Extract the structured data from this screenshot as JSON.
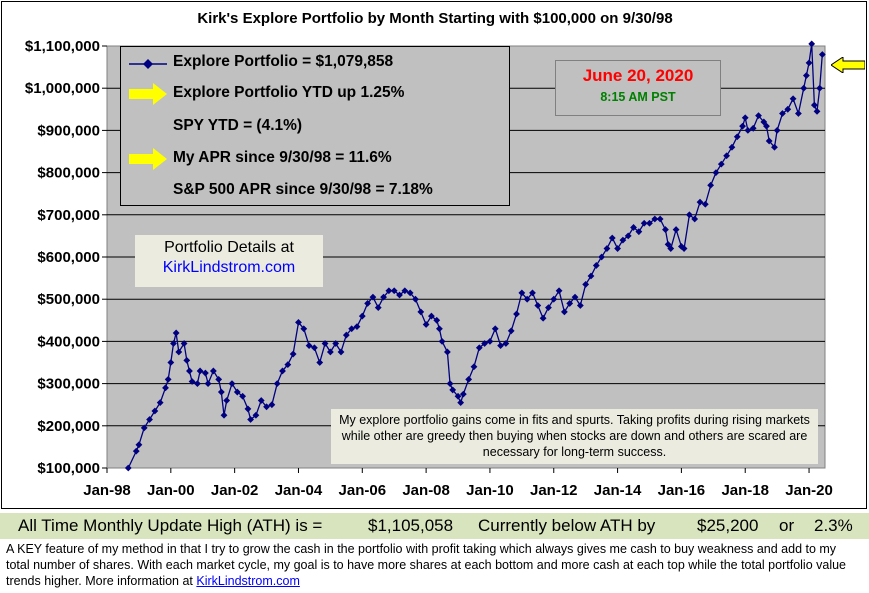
{
  "chart_data": {
    "type": "line",
    "title": "Kirk's Explore Portfolio by Month Starting with $100,000 on 9/30/98",
    "xlabel": "",
    "ylabel": "",
    "x_tick_labels": [
      "Jan-98",
      "Jan-00",
      "Jan-02",
      "Jan-04",
      "Jan-06",
      "Jan-08",
      "Jan-10",
      "Jan-12",
      "Jan-14",
      "Jan-16",
      "Jan-18",
      "Jan-20"
    ],
    "y_tick_labels": [
      "$100,000",
      "$200,000",
      "$300,000",
      "$400,000",
      "$500,000",
      "$600,000",
      "$700,000",
      "$800,000",
      "$900,000",
      "$1,000,000",
      "$1,100,000"
    ],
    "ylim": [
      100000,
      1100000
    ],
    "xlim": [
      "1998-01",
      "2020-07"
    ],
    "grid": "horizontal",
    "series": [
      {
        "name": "Explore Portfolio",
        "color": "#000080",
        "marker": "diamond",
        "points": [
          [
            "1998-09",
            100000
          ],
          [
            "1998-12",
            140000
          ],
          [
            "1999-01",
            155000
          ],
          [
            "1999-03",
            195000
          ],
          [
            "1999-05",
            215000
          ],
          [
            "1999-07",
            235000
          ],
          [
            "1999-09",
            255000
          ],
          [
            "1999-11",
            290000
          ],
          [
            "1999-12",
            310000
          ],
          [
            "2000-01",
            350000
          ],
          [
            "2000-02",
            395000
          ],
          [
            "2000-03",
            420000
          ],
          [
            "2000-04",
            375000
          ],
          [
            "2000-06",
            395000
          ],
          [
            "2000-07",
            355000
          ],
          [
            "2000-08",
            330000
          ],
          [
            "2000-09",
            305000
          ],
          [
            "2000-11",
            300000
          ],
          [
            "2000-12",
            330000
          ],
          [
            "2001-02",
            325000
          ],
          [
            "2001-03",
            300000
          ],
          [
            "2001-05",
            330000
          ],
          [
            "2001-07",
            310000
          ],
          [
            "2001-08",
            280000
          ],
          [
            "2001-09",
            225000
          ],
          [
            "2001-10",
            260000
          ],
          [
            "2001-12",
            300000
          ],
          [
            "2002-02",
            280000
          ],
          [
            "2002-04",
            270000
          ],
          [
            "2002-06",
            240000
          ],
          [
            "2002-07",
            215000
          ],
          [
            "2002-09",
            225000
          ],
          [
            "2002-11",
            260000
          ],
          [
            "2003-01",
            245000
          ],
          [
            "2003-03",
            250000
          ],
          [
            "2003-05",
            300000
          ],
          [
            "2003-07",
            330000
          ],
          [
            "2003-09",
            345000
          ],
          [
            "2003-11",
            370000
          ],
          [
            "2004-01",
            445000
          ],
          [
            "2004-03",
            430000
          ],
          [
            "2004-05",
            390000
          ],
          [
            "2004-07",
            385000
          ],
          [
            "2004-09",
            350000
          ],
          [
            "2004-11",
            395000
          ],
          [
            "2005-01",
            375000
          ],
          [
            "2005-03",
            395000
          ],
          [
            "2005-05",
            375000
          ],
          [
            "2005-07",
            415000
          ],
          [
            "2005-09",
            430000
          ],
          [
            "2005-11",
            435000
          ],
          [
            "2006-01",
            460000
          ],
          [
            "2006-03",
            490000
          ],
          [
            "2006-05",
            505000
          ],
          [
            "2006-07",
            480000
          ],
          [
            "2006-09",
            505000
          ],
          [
            "2006-11",
            520000
          ],
          [
            "2007-01",
            520000
          ],
          [
            "2007-03",
            510000
          ],
          [
            "2007-05",
            520000
          ],
          [
            "2007-07",
            515000
          ],
          [
            "2007-09",
            500000
          ],
          [
            "2007-11",
            470000
          ],
          [
            "2008-01",
            440000
          ],
          [
            "2008-03",
            460000
          ],
          [
            "2008-05",
            450000
          ],
          [
            "2008-06",
            430000
          ],
          [
            "2008-07",
            400000
          ],
          [
            "2008-09",
            375000
          ],
          [
            "2008-10",
            300000
          ],
          [
            "2008-11",
            285000
          ],
          [
            "2009-01",
            270000
          ],
          [
            "2009-02",
            255000
          ],
          [
            "2009-03",
            275000
          ],
          [
            "2009-05",
            310000
          ],
          [
            "2009-07",
            340000
          ],
          [
            "2009-09",
            385000
          ],
          [
            "2009-11",
            395000
          ],
          [
            "2010-01",
            400000
          ],
          [
            "2010-03",
            430000
          ],
          [
            "2010-05",
            390000
          ],
          [
            "2010-07",
            395000
          ],
          [
            "2010-09",
            425000
          ],
          [
            "2010-11",
            465000
          ],
          [
            "2011-01",
            515000
          ],
          [
            "2011-03",
            500000
          ],
          [
            "2011-05",
            515000
          ],
          [
            "2011-07",
            485000
          ],
          [
            "2011-09",
            455000
          ],
          [
            "2011-11",
            480000
          ],
          [
            "2012-01",
            500000
          ],
          [
            "2012-03",
            520000
          ],
          [
            "2012-05",
            470000
          ],
          [
            "2012-07",
            490000
          ],
          [
            "2012-09",
            505000
          ],
          [
            "2012-11",
            485000
          ],
          [
            "2013-01",
            535000
          ],
          [
            "2013-03",
            555000
          ],
          [
            "2013-05",
            580000
          ],
          [
            "2013-07",
            600000
          ],
          [
            "2013-09",
            620000
          ],
          [
            "2013-11",
            645000
          ],
          [
            "2014-01",
            620000
          ],
          [
            "2014-03",
            640000
          ],
          [
            "2014-05",
            650000
          ],
          [
            "2014-07",
            670000
          ],
          [
            "2014-09",
            660000
          ],
          [
            "2014-11",
            680000
          ],
          [
            "2015-01",
            680000
          ],
          [
            "2015-03",
            690000
          ],
          [
            "2015-05",
            690000
          ],
          [
            "2015-07",
            665000
          ],
          [
            "2015-08",
            630000
          ],
          [
            "2015-09",
            620000
          ],
          [
            "2015-11",
            665000
          ],
          [
            "2016-01",
            625000
          ],
          [
            "2016-02",
            620000
          ],
          [
            "2016-04",
            700000
          ],
          [
            "2016-06",
            690000
          ],
          [
            "2016-08",
            730000
          ],
          [
            "2016-10",
            725000
          ],
          [
            "2016-12",
            770000
          ],
          [
            "2017-02",
            800000
          ],
          [
            "2017-04",
            820000
          ],
          [
            "2017-06",
            840000
          ],
          [
            "2017-08",
            860000
          ],
          [
            "2017-10",
            885000
          ],
          [
            "2017-12",
            910000
          ],
          [
            "2018-01",
            930000
          ],
          [
            "2018-02",
            900000
          ],
          [
            "2018-04",
            905000
          ],
          [
            "2018-06",
            935000
          ],
          [
            "2018-08",
            920000
          ],
          [
            "2018-09",
            910000
          ],
          [
            "2018-10",
            875000
          ],
          [
            "2018-12",
            860000
          ],
          [
            "2019-01",
            900000
          ],
          [
            "2019-03",
            940000
          ],
          [
            "2019-05",
            950000
          ],
          [
            "2019-07",
            975000
          ],
          [
            "2019-09",
            940000
          ],
          [
            "2019-11",
            1000000
          ],
          [
            "2019-12",
            1030000
          ],
          [
            "2020-01",
            1060000
          ],
          [
            "2020-02",
            1105058
          ],
          [
            "2020-03",
            960000
          ],
          [
            "2020-04",
            945000
          ],
          [
            "2020-05",
            1000000
          ],
          [
            "2020-06",
            1079858
          ]
        ]
      }
    ]
  },
  "legend": {
    "series_label": "Explore Portfolio  =  $1,079,858",
    "ytd": "Explore Portfolio YTD up 1.25%",
    "spy_ytd": "SPY YTD =  (4.1%)",
    "my_apr": "My APR since 9/30/98 =  11.6%",
    "sp_apr": "S&P 500 APR since 9/30/98 =  7.18%"
  },
  "date_box": {
    "date": "June 20, 2020",
    "time": "8:15 AM PST"
  },
  "details": {
    "label": "Portfolio Details at",
    "link": "KirkLindstrom.com"
  },
  "note": "My explore portfolio gains come in fits and spurts. Taking profits during rising markets while other are greedy then buying when stocks are down and others are scared are necessary for long-term success.",
  "ath": {
    "prefix": "All Time Monthly Update High (ATH) is =",
    "value": "$1,105,058",
    "below_label": "Currently below ATH by",
    "below_amount": "$25,200",
    "or": "or",
    "below_pct": "2.3%"
  },
  "footer": {
    "text": "A KEY feature of my method in that I try to grow the cash in the portfolio with profit taking which always gives me cash to buy weakness and add to my total number of shares.  With each market cycle, my goal is to have more shares at each bottom and more cash at each top while the total portfolio value trends higher.           More information at ",
    "link": "KirkLindstrom.com"
  },
  "colors": {
    "plot_bg": "#c0c0c0",
    "series": "#000080",
    "highlight_arrow": "#ffff00",
    "date_red": "#ff0000",
    "time_green": "#008000",
    "ath_banner": "#d7e4bd"
  }
}
